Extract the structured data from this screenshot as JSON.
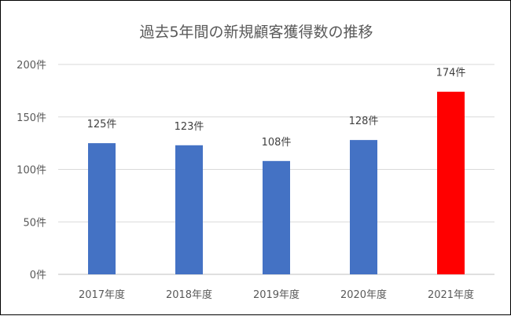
{
  "chart_data": {
    "type": "bar",
    "title": "過去5年間の新規顧客獲得数の推移",
    "categories": [
      "2017年度",
      "2018年度",
      "2019年度",
      "2020年度",
      "2021年度"
    ],
    "values": [
      125,
      123,
      108,
      128,
      174
    ],
    "data_labels": [
      "125件",
      "123件",
      "108件",
      "128件",
      "174件"
    ],
    "y_ticks": [
      0,
      50,
      100,
      150,
      200
    ],
    "y_tick_labels": [
      "0件",
      "50件",
      "100件",
      "150件",
      "200件"
    ],
    "ylim": [
      0,
      200
    ],
    "grid": true,
    "legend": false,
    "colors": {
      "bar": "#4472C4",
      "highlight_bar": "#FF0000",
      "highlight_index": 4,
      "grid": "#D9D9D9",
      "axis": "#BFBFBF"
    }
  }
}
